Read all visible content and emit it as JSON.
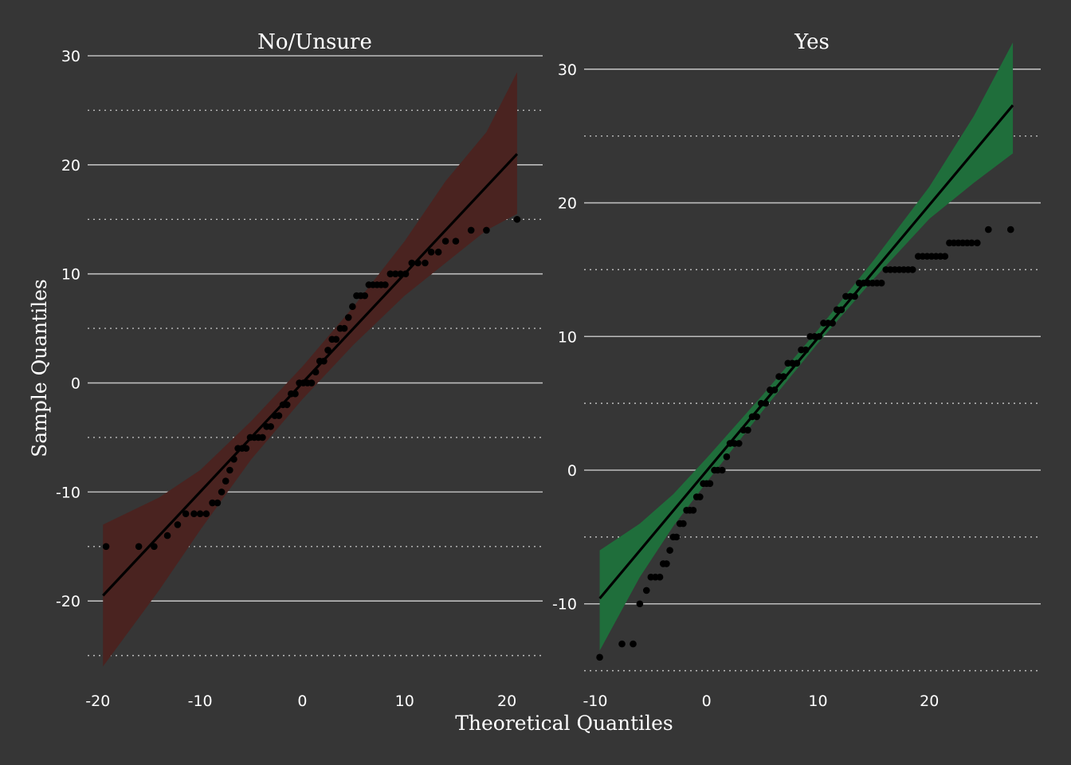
{
  "chart_data": {
    "type": "scatter",
    "subtype": "qq-plot",
    "xlabel": "Theoretical Quantiles",
    "ylabel": "Sample Quantiles",
    "background": "#363636",
    "grid_major_color": "#bdbdbd",
    "grid_minor_style": "dotted",
    "point_color": "#000000",
    "line_color": "#000000",
    "panels": [
      {
        "title": "No/Unsure",
        "band_color": "#4a2320",
        "xlim": [
          -21,
          23.5
        ],
        "ylim": [
          -27,
          30
        ],
        "x_ticks": [
          -20,
          -10,
          0,
          10,
          20
        ],
        "x_tick_labels": [
          "-20",
          "-10",
          "0",
          "10",
          "20"
        ],
        "y_major_ticks": [
          -20,
          -10,
          0,
          10,
          20,
          30
        ],
        "y_tick_labels": [
          "-20",
          "-10",
          "0",
          "10",
          "20",
          "30"
        ],
        "y_minor_ticks": [
          -25,
          -15,
          -5,
          5,
          15,
          25
        ],
        "line": {
          "x": [
            -19.5,
            21
          ],
          "y": [
            -19.5,
            21
          ]
        },
        "band": [
          {
            "x": -19.5,
            "lo": -26,
            "hi": -13
          },
          {
            "x": -14,
            "lo": -19,
            "hi": -10.5
          },
          {
            "x": -10,
            "lo": -13.5,
            "hi": -8
          },
          {
            "x": -5,
            "lo": -7,
            "hi": -3.5
          },
          {
            "x": 0,
            "lo": -1.5,
            "hi": 1.5
          },
          {
            "x": 5,
            "lo": 3.5,
            "hi": 7
          },
          {
            "x": 10,
            "lo": 8,
            "hi": 13
          },
          {
            "x": 14,
            "lo": 11,
            "hi": 18.5
          },
          {
            "x": 18,
            "lo": 14,
            "hi": 23
          },
          {
            "x": 21,
            "lo": 15.5,
            "hi": 28.5
          }
        ],
        "points": [
          [
            -19.2,
            -15
          ],
          [
            -16,
            -15
          ],
          [
            -14.5,
            -15
          ],
          [
            -13.2,
            -14
          ],
          [
            -12.2,
            -13
          ],
          [
            -11.4,
            -12
          ],
          [
            -10.6,
            -12
          ],
          [
            -10,
            -12
          ],
          [
            -9.4,
            -12
          ],
          [
            -8.8,
            -11
          ],
          [
            -8.3,
            -11
          ],
          [
            -7.9,
            -10
          ],
          [
            -7.5,
            -9
          ],
          [
            -7.1,
            -8
          ],
          [
            -6.7,
            -7
          ],
          [
            -6.3,
            -6
          ],
          [
            -5.9,
            -6
          ],
          [
            -5.5,
            -6
          ],
          [
            -5.1,
            -5
          ],
          [
            -4.7,
            -5
          ],
          [
            -4.3,
            -5
          ],
          [
            -3.9,
            -5
          ],
          [
            -3.5,
            -4
          ],
          [
            -3.1,
            -4
          ],
          [
            -2.7,
            -3
          ],
          [
            -2.3,
            -3
          ],
          [
            -1.9,
            -2
          ],
          [
            -1.5,
            -2
          ],
          [
            -1.1,
            -1
          ],
          [
            -0.7,
            -1
          ],
          [
            -0.3,
            0
          ],
          [
            0.1,
            0
          ],
          [
            0.5,
            0
          ],
          [
            0.9,
            0
          ],
          [
            1.3,
            1
          ],
          [
            1.7,
            2
          ],
          [
            2.1,
            2
          ],
          [
            2.5,
            3
          ],
          [
            2.9,
            4
          ],
          [
            3.3,
            4
          ],
          [
            3.7,
            5
          ],
          [
            4.1,
            5
          ],
          [
            4.5,
            6
          ],
          [
            4.9,
            7
          ],
          [
            5.3,
            8
          ],
          [
            5.7,
            8
          ],
          [
            6.1,
            8
          ],
          [
            6.5,
            9
          ],
          [
            6.9,
            9
          ],
          [
            7.3,
            9
          ],
          [
            7.7,
            9
          ],
          [
            8.1,
            9
          ],
          [
            8.6,
            10
          ],
          [
            9.1,
            10
          ],
          [
            9.6,
            10
          ],
          [
            10.1,
            10
          ],
          [
            10.7,
            11
          ],
          [
            11.3,
            11
          ],
          [
            12,
            11
          ],
          [
            12.6,
            12
          ],
          [
            13.3,
            12
          ],
          [
            14,
            13
          ],
          [
            15,
            13
          ],
          [
            16.5,
            14
          ],
          [
            18,
            14
          ],
          [
            21,
            15
          ]
        ]
      },
      {
        "title": "Yes",
        "band_color": "#1f6e3b",
        "xlim": [
          -11,
          30
        ],
        "ylim": [
          -15.5,
          31
        ],
        "x_ticks": [
          -10,
          0,
          10,
          20
        ],
        "x_tick_labels": [
          "-10",
          "0",
          "10",
          "20"
        ],
        "y_major_ticks": [
          -10,
          0,
          10,
          20,
          30
        ],
        "y_tick_labels": [
          "-10",
          "0",
          "10",
          "20",
          "30"
        ],
        "y_minor_ticks": [
          -15,
          -5,
          5,
          15,
          25
        ],
        "line": {
          "x": [
            -9.6,
            27.5
          ],
          "y": [
            -9.6,
            27.3
          ]
        },
        "band": [
          {
            "x": -9.6,
            "lo": -13.5,
            "hi": -6
          },
          {
            "x": -6,
            "lo": -8,
            "hi": -4
          },
          {
            "x": -3,
            "lo": -4.2,
            "hi": -1.8
          },
          {
            "x": 0,
            "lo": -0.9,
            "hi": 0.9
          },
          {
            "x": 5,
            "lo": 4.4,
            "hi": 5.6
          },
          {
            "x": 10,
            "lo": 9.5,
            "hi": 10.5
          },
          {
            "x": 15,
            "lo": 14.3,
            "hi": 15.7
          },
          {
            "x": 20,
            "lo": 18.8,
            "hi": 21.2
          },
          {
            "x": 24,
            "lo": 21.5,
            "hi": 26.5
          },
          {
            "x": 27.5,
            "lo": 23.7,
            "hi": 32
          }
        ],
        "points": [
          [
            -9.6,
            -14
          ],
          [
            -7.6,
            -13
          ],
          [
            -6.6,
            -13
          ],
          [
            -6,
            -10
          ],
          [
            -5.4,
            -9
          ],
          [
            -5,
            -8
          ],
          [
            -4.6,
            -8
          ],
          [
            -4.2,
            -8
          ],
          [
            -3.9,
            -7
          ],
          [
            -3.6,
            -7
          ],
          [
            -3.3,
            -6
          ],
          [
            -3,
            -5
          ],
          [
            -2.7,
            -5
          ],
          [
            -2.4,
            -4
          ],
          [
            -2.1,
            -4
          ],
          [
            -1.8,
            -3
          ],
          [
            -1.5,
            -3
          ],
          [
            -1.2,
            -3
          ],
          [
            -0.9,
            -2
          ],
          [
            -0.6,
            -2
          ],
          [
            -0.3,
            -1
          ],
          [
            0,
            -1
          ],
          [
            0.3,
            -1
          ],
          [
            0.7,
            0
          ],
          [
            1,
            0
          ],
          [
            1.4,
            0
          ],
          [
            1.8,
            1
          ],
          [
            2.1,
            2
          ],
          [
            2.5,
            2
          ],
          [
            2.9,
            2
          ],
          [
            3.3,
            3
          ],
          [
            3.7,
            3
          ],
          [
            4.1,
            4
          ],
          [
            4.5,
            4
          ],
          [
            4.9,
            5
          ],
          [
            5.3,
            5
          ],
          [
            5.7,
            6
          ],
          [
            6.1,
            6
          ],
          [
            6.5,
            7
          ],
          [
            6.9,
            7
          ],
          [
            7.3,
            8
          ],
          [
            7.7,
            8
          ],
          [
            8.1,
            8
          ],
          [
            8.5,
            9
          ],
          [
            8.9,
            9
          ],
          [
            9.3,
            10
          ],
          [
            9.7,
            10
          ],
          [
            10.1,
            10
          ],
          [
            10.5,
            11
          ],
          [
            10.9,
            11
          ],
          [
            11.3,
            11
          ],
          [
            11.7,
            12
          ],
          [
            12.1,
            12
          ],
          [
            12.5,
            13
          ],
          [
            12.9,
            13
          ],
          [
            13.3,
            13
          ],
          [
            13.7,
            14
          ],
          [
            14.1,
            14
          ],
          [
            14.5,
            14
          ],
          [
            14.9,
            14
          ],
          [
            15.3,
            14
          ],
          [
            15.7,
            14
          ],
          [
            16.1,
            15
          ],
          [
            16.5,
            15
          ],
          [
            16.9,
            15
          ],
          [
            17.3,
            15
          ],
          [
            17.7,
            15
          ],
          [
            18.1,
            15
          ],
          [
            18.5,
            15
          ],
          [
            19,
            16
          ],
          [
            19.4,
            16
          ],
          [
            19.8,
            16
          ],
          [
            20.2,
            16
          ],
          [
            20.6,
            16
          ],
          [
            21,
            16
          ],
          [
            21.4,
            16
          ],
          [
            21.8,
            17
          ],
          [
            22.2,
            17
          ],
          [
            22.6,
            17
          ],
          [
            23,
            17
          ],
          [
            23.4,
            17
          ],
          [
            23.8,
            17
          ],
          [
            24.3,
            17
          ],
          [
            25.3,
            18
          ],
          [
            27.3,
            18
          ]
        ]
      }
    ]
  }
}
